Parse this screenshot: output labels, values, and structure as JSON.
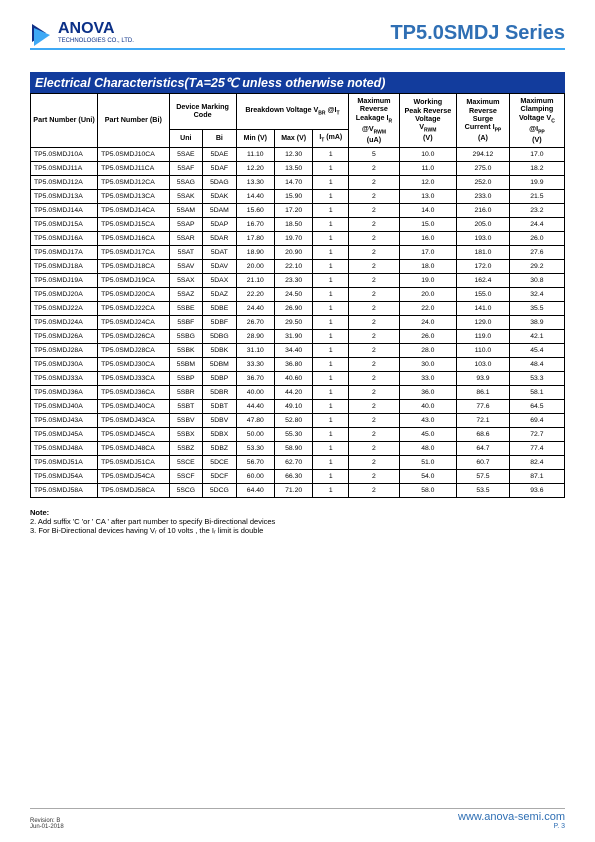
{
  "header": {
    "logo_name": "ANOVA",
    "logo_sub": "TECHNOLOGIES CO., LTD.",
    "series": "TP5.0SMDJ Series"
  },
  "section": {
    "title": "Electrical Characteristics(Tᴀ=25℃ unless otherwise noted)"
  },
  "tableHead": {
    "partUni": "Part Number (Uni)",
    "partBi": "Part Number (Bi)",
    "device": "Device Marking Code",
    "device_uni": "Uni",
    "device_bi": "Bi",
    "breakdown": "Breakdown Voltage V_BR @I_T",
    "minv": "Min (V)",
    "maxv": "Max (V)",
    "it": "I_T (mA)",
    "leak": "Maximum Reverse Leakage I_R @V_RWM (uA)",
    "vrwm": "Working Peak Reverse Voltage V_RWM (V)",
    "ipp": "Maximum Reverse Surge Current I_PP (A)",
    "vc": "Maximum Clamping Voltage V_C @I_PP (V)"
  },
  "rows": [
    [
      "TP5.0SMDJ10A",
      "TP5.0SMDJ10CA",
      "5SAE",
      "5DAE",
      "11.10",
      "12.30",
      "1",
      "5",
      "10.0",
      "294.12",
      "17.0"
    ],
    [
      "TP5.0SMDJ11A",
      "TP5.0SMDJ11CA",
      "5SAF",
      "5DAF",
      "12.20",
      "13.50",
      "1",
      "2",
      "11.0",
      "275.0",
      "18.2"
    ],
    [
      "TP5.0SMDJ12A",
      "TP5.0SMDJ12CA",
      "5SAG",
      "5DAG",
      "13.30",
      "14.70",
      "1",
      "2",
      "12.0",
      "252.0",
      "19.9"
    ],
    [
      "TP5.0SMDJ13A",
      "TP5.0SMDJ13CA",
      "5SAK",
      "5DAK",
      "14.40",
      "15.90",
      "1",
      "2",
      "13.0",
      "233.0",
      "21.5"
    ],
    [
      "TP5.0SMDJ14A",
      "TP5.0SMDJ14CA",
      "5SAM",
      "5DAM",
      "15.60",
      "17.20",
      "1",
      "2",
      "14.0",
      "216.0",
      "23.2"
    ],
    [
      "TP5.0SMDJ15A",
      "TP5.0SMDJ15CA",
      "5SAP",
      "5DAP",
      "16.70",
      "18.50",
      "1",
      "2",
      "15.0",
      "205.0",
      "24.4"
    ],
    [
      "TP5.0SMDJ16A",
      "TP5.0SMDJ16CA",
      "5SAR",
      "5DAR",
      "17.80",
      "19.70",
      "1",
      "2",
      "16.0",
      "193.0",
      "26.0"
    ],
    [
      "TP5.0SMDJ17A",
      "TP5.0SMDJ17CA",
      "5SAT",
      "5DAT",
      "18.90",
      "20.90",
      "1",
      "2",
      "17.0",
      "181.0",
      "27.6"
    ],
    [
      "TP5.0SMDJ18A",
      "TP5.0SMDJ18CA",
      "5SAV",
      "5DAV",
      "20.00",
      "22.10",
      "1",
      "2",
      "18.0",
      "172.0",
      "29.2"
    ],
    [
      "TP5.0SMDJ19A",
      "TP5.0SMDJ19CA",
      "5SAX",
      "5DAX",
      "21.10",
      "23.30",
      "1",
      "2",
      "19.0",
      "162.4",
      "30.8"
    ],
    [
      "TP5.0SMDJ20A",
      "TP5.0SMDJ20CA",
      "5SAZ",
      "5DAZ",
      "22.20",
      "24.50",
      "1",
      "2",
      "20.0",
      "155.0",
      "32.4"
    ],
    [
      "TP5.0SMDJ22A",
      "TP5.0SMDJ22CA",
      "5SBE",
      "5DBE",
      "24.40",
      "26.90",
      "1",
      "2",
      "22.0",
      "141.0",
      "35.5"
    ],
    [
      "TP5.0SMDJ24A",
      "TP5.0SMDJ24CA",
      "5SBF",
      "5DBF",
      "26.70",
      "29.50",
      "1",
      "2",
      "24.0",
      "129.0",
      "38.9"
    ],
    [
      "TP5.0SMDJ26A",
      "TP5.0SMDJ26CA",
      "5SBG",
      "5DBG",
      "28.90",
      "31.90",
      "1",
      "2",
      "26.0",
      "119.0",
      "42.1"
    ],
    [
      "TP5.0SMDJ28A",
      "TP5.0SMDJ28CA",
      "5SBK",
      "5DBK",
      "31.10",
      "34.40",
      "1",
      "2",
      "28.0",
      "110.0",
      "45.4"
    ],
    [
      "TP5.0SMDJ30A",
      "TP5.0SMDJ30CA",
      "5SBM",
      "5DBM",
      "33.30",
      "36.80",
      "1",
      "2",
      "30.0",
      "103.0",
      "48.4"
    ],
    [
      "TP5.0SMDJ33A",
      "TP5.0SMDJ33CA",
      "5SBP",
      "5DBP",
      "36.70",
      "40.60",
      "1",
      "2",
      "33.0",
      "93.9",
      "53.3"
    ],
    [
      "TP5.0SMDJ36A",
      "TP5.0SMDJ36CA",
      "5SBR",
      "5DBR",
      "40.00",
      "44.20",
      "1",
      "2",
      "36.0",
      "86.1",
      "58.1"
    ],
    [
      "TP5.0SMDJ40A",
      "TP5.0SMDJ40CA",
      "5SBT",
      "5DBT",
      "44.40",
      "49.10",
      "1",
      "2",
      "40.0",
      "77.6",
      "64.5"
    ],
    [
      "TP5.0SMDJ43A",
      "TP5.0SMDJ43CA",
      "5SBV",
      "5DBV",
      "47.80",
      "52.80",
      "1",
      "2",
      "43.0",
      "72.1",
      "69.4"
    ],
    [
      "TP5.0SMDJ45A",
      "TP5.0SMDJ45CA",
      "5SBX",
      "5DBX",
      "50.00",
      "55.30",
      "1",
      "2",
      "45.0",
      "68.6",
      "72.7"
    ],
    [
      "TP5.0SMDJ48A",
      "TP5.0SMDJ48CA",
      "5SBZ",
      "5DBZ",
      "53.30",
      "58.90",
      "1",
      "2",
      "48.0",
      "64.7",
      "77.4"
    ],
    [
      "TP5.0SMDJ51A",
      "TP5.0SMDJ51CA",
      "5SCE",
      "5DCE",
      "56.70",
      "62.70",
      "1",
      "2",
      "51.0",
      "60.7",
      "82.4"
    ],
    [
      "TP5.0SMDJ54A",
      "TP5.0SMDJ54CA",
      "5SCF",
      "5DCF",
      "60.00",
      "66.30",
      "1",
      "2",
      "54.0",
      "57.5",
      "87.1"
    ],
    [
      "TP5.0SMDJ58A",
      "TP5.0SMDJ58CA",
      "5SCG",
      "5DCG",
      "64.40",
      "71.20",
      "1",
      "2",
      "58.0",
      "53.5",
      "93.6"
    ]
  ],
  "notes": {
    "heading": "Note:",
    "n2": "2. Add suffix 'C 'or ' CA ' after part number to specify Bi-directional devices",
    "n3": "3. For Bi-Directional devices having Vᵣ of 10 volts , the Iᵣ limit is double"
  },
  "footer": {
    "revision": "Revision: B",
    "date": "Jun-01-2018",
    "url": "www.anova-semi.com",
    "page": "P. 3"
  }
}
